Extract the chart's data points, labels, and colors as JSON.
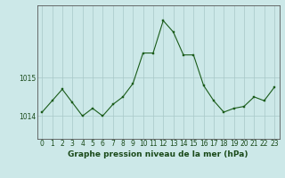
{
  "x": [
    0,
    1,
    2,
    3,
    4,
    5,
    6,
    7,
    8,
    9,
    10,
    11,
    12,
    13,
    14,
    15,
    16,
    17,
    18,
    19,
    20,
    21,
    22,
    23
  ],
  "y": [
    1014.1,
    1014.4,
    1014.7,
    1014.35,
    1014.0,
    1014.2,
    1014.0,
    1014.3,
    1014.5,
    1014.85,
    1015.65,
    1015.65,
    1016.5,
    1016.2,
    1015.6,
    1015.6,
    1014.8,
    1014.4,
    1014.1,
    1014.2,
    1014.25,
    1014.5,
    1014.4,
    1014.75
  ],
  "line_color": "#1a5c1a",
  "marker": "s",
  "marker_size": 1.8,
  "bg_color": "#cce8e8",
  "plot_bg_color": "#cce8e8",
  "grid_color": "#a8c8c8",
  "xlabel": "Graphe pression niveau de la mer (hPa)",
  "xlabel_fontsize": 6.5,
  "yticks": [
    1014,
    1015
  ],
  "ylim": [
    1013.4,
    1016.9
  ],
  "xlim": [
    -0.5,
    23.5
  ],
  "xtick_labels": [
    "0",
    "1",
    "2",
    "3",
    "4",
    "5",
    "6",
    "7",
    "8",
    "9",
    "10",
    "11",
    "12",
    "13",
    "14",
    "15",
    "16",
    "17",
    "18",
    "19",
    "20",
    "21",
    "22",
    "23"
  ],
  "tick_fontsize": 5.5,
  "axis_color": "#555555"
}
